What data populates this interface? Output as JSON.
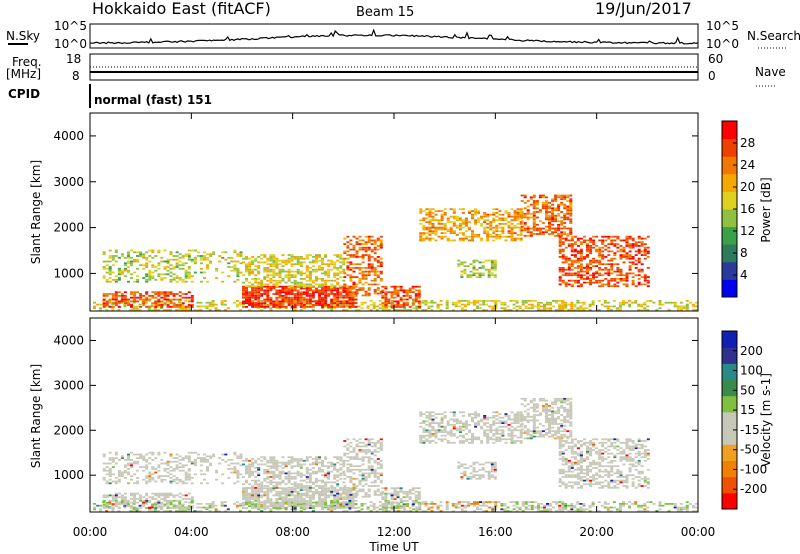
{
  "header": {
    "station": "Hokkaido East (fitACF)",
    "beam": "Beam 15",
    "date": "19/Jun/2017"
  },
  "top_strip": {
    "nsky_label": "N.Sky",
    "nsky_ticks": [
      "10^5",
      "10^0"
    ],
    "nsearch_label": "N.Search",
    "nsearch_ticks": [
      "10^5",
      "10^0"
    ],
    "freq_label_1": "Freq.",
    "freq_label_2": "[MHz]",
    "freq_ticks": [
      "18",
      "8"
    ],
    "nave_label": "Nave",
    "nave_ticks": [
      "60",
      "0"
    ],
    "cpid_label": "CPID",
    "cpid_value": "normal (fast) 151"
  },
  "panels": {
    "ylabel": "Slant Range [km]",
    "y_ticks": [
      "4000",
      "3000",
      "2000",
      "1000"
    ],
    "power_bar": {
      "label": "Power [dB]",
      "ticks": [
        "28",
        "24",
        "20",
        "16",
        "12",
        "8",
        "4"
      ],
      "colors": [
        "#0000ee",
        "#2a3a9a",
        "#2e7a5a",
        "#3aa04a",
        "#90c040",
        "#e0d020",
        "#f5a800",
        "#f07800",
        "#f04000",
        "#ff0000"
      ]
    },
    "velocity_bar": {
      "label": "Velocity [m s-1]",
      "ticks": [
        "200",
        "100",
        "50",
        "15",
        "-15",
        "-50",
        "-100",
        "-200"
      ],
      "colors": [
        "#ff0000",
        "#f05000",
        "#f08000",
        "#f0a020",
        "#c8c8b8",
        "#c8c8b8",
        "#80c040",
        "#3a8a4a",
        "#2a8a8a",
        "#303090",
        "#1020b0"
      ]
    }
  },
  "xaxis": {
    "label": "Time UT",
    "ticks": [
      "00:00",
      "04:00",
      "08:00",
      "12:00",
      "16:00",
      "20:00",
      "00:00"
    ]
  },
  "chart_data": {
    "type": "heatmap",
    "x_range_hours": [
      0,
      24
    ],
    "y_range_km": [
      180,
      4500
    ],
    "power_range_db": [
      0,
      32
    ],
    "velocity_range_ms": [
      -250,
      250
    ],
    "scatter_regions_power": [
      {
        "t": [
          0,
          24
        ],
        "r": [
          180,
          400
        ],
        "power_db": 18,
        "density": 0.45
      },
      {
        "t": [
          0.5,
          6
        ],
        "r": [
          800,
          1500
        ],
        "power_db": 16,
        "density": 0.35
      },
      {
        "t": [
          0.5,
          4
        ],
        "r": [
          250,
          600
        ],
        "power_db": 28,
        "density": 0.6
      },
      {
        "t": [
          6,
          10.5
        ],
        "r": [
          250,
          700
        ],
        "power_db": 30,
        "density": 0.8
      },
      {
        "t": [
          6,
          10
        ],
        "r": [
          700,
          1400
        ],
        "power_db": 18,
        "density": 0.5
      },
      {
        "t": [
          10,
          11.5
        ],
        "r": [
          500,
          1800
        ],
        "power_db": 26,
        "density": 0.5
      },
      {
        "t": [
          11.5,
          13
        ],
        "r": [
          250,
          700
        ],
        "power_db": 28,
        "density": 0.6
      },
      {
        "t": [
          13,
          17
        ],
        "r": [
          1700,
          2400
        ],
        "power_db": 22,
        "density": 0.5
      },
      {
        "t": [
          14.5,
          16
        ],
        "r": [
          900,
          1300
        ],
        "power_db": 16,
        "density": 0.45
      },
      {
        "t": [
          17,
          19
        ],
        "r": [
          1800,
          2700
        ],
        "power_db": 26,
        "density": 0.55
      },
      {
        "t": [
          18.5,
          22
        ],
        "r": [
          700,
          1800
        ],
        "power_db": 28,
        "density": 0.5
      }
    ]
  }
}
